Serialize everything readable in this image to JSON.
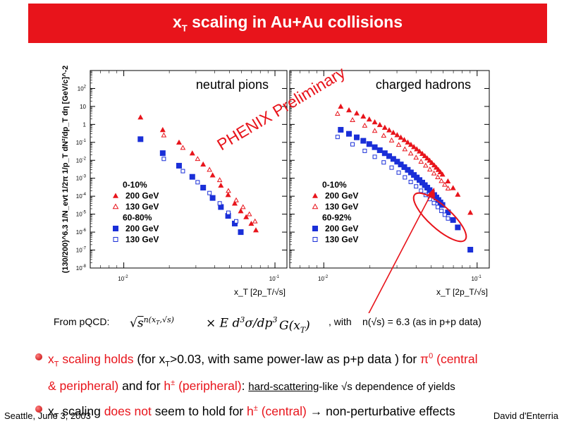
{
  "slide": {
    "title_main": "x",
    "title_sub": "T",
    "title_rest": " scaling in Au+Au collisions",
    "footer_left": "Seattle, June  3, 2003",
    "footer_right": "David d'Enterria"
  },
  "overlay": {
    "stamp": "PHENIX Preliminary",
    "colors": {
      "accent": "#e8141b",
      "series_filled": "#e8141b",
      "series_blue": "#1a2fd8"
    }
  },
  "chart_data": [
    {
      "type": "scatter",
      "title": "neutral pions",
      "ylabel": "(130/200)^6.3 1/N_evt 1/2π 1/p_T dN²/dp_T dη [GeV/c]^-2",
      "xlabel": "x_T [2p_T/√s]",
      "x_scale": "log",
      "y_scale": "log",
      "xlim": [
        0.006,
        0.12
      ],
      "ylim": [
        1e-08,
        1000
      ],
      "x_tick_labels": [
        "10-2",
        "10-1"
      ],
      "y_tick_labels": [
        "102",
        "10",
        "1",
        "10-1",
        "10-2",
        "10-3",
        "10-4",
        "10-5",
        "10-6",
        "10-7",
        "10-8"
      ],
      "legend": {
        "placement": "bottom-left",
        "entries": [
          "0-10%",
          "200 GeV",
          "130 GeV",
          "60-80%",
          "200 GeV",
          "130 GeV"
        ]
      },
      "series": [
        {
          "name": "0-10% 200 GeV",
          "marker": "filled-triangle",
          "color": "#e8141b",
          "x": [
            0.0129,
            0.0181,
            0.0232,
            0.0284,
            0.0335,
            0.0387,
            0.0439,
            0.049,
            0.0542,
            0.0594,
            0.0645,
            0.0697,
            0.0748
          ],
          "y": [
            2.5,
            0.5,
            0.1,
            0.025,
            0.006,
            0.0015,
            0.0004,
            0.00012,
            4e-05,
            1.5e-05,
            7e-06,
            3e-06,
            1.3e-06
          ]
        },
        {
          "name": "0-10% 130 GeV",
          "marker": "open-triangle",
          "color": "#e8141b",
          "x": [
            0.0184,
            0.0246,
            0.0308,
            0.0369,
            0.0431,
            0.0492,
            0.0554,
            0.0615,
            0.0677,
            0.0738
          ],
          "y": [
            0.25,
            0.05,
            0.012,
            0.003,
            0.0008,
            0.0002,
            6e-05,
            2.5e-05,
            1e-05,
            4e-06
          ]
        },
        {
          "name": "60-80% 200 GeV",
          "marker": "filled-square",
          "color": "#1a2fd8",
          "x": [
            0.0129,
            0.0181,
            0.0232,
            0.0284,
            0.0335,
            0.0387,
            0.0439,
            0.049,
            0.0542,
            0.0594
          ],
          "y": [
            0.15,
            0.025,
            0.005,
            0.0012,
            0.0003,
            8e-05,
            2.5e-05,
            8e-06,
            3e-06,
            1e-06
          ]
        },
        {
          "name": "60-80% 130 GeV",
          "marker": "open-square",
          "color": "#1a2fd8",
          "x": [
            0.0184,
            0.0246,
            0.0308,
            0.0369,
            0.0431,
            0.0492,
            0.0554
          ],
          "y": [
            0.012,
            0.0025,
            0.0006,
            0.00015,
            4e-05,
            1.2e-05,
            4e-06
          ]
        }
      ]
    },
    {
      "type": "scatter",
      "title": "charged hadrons",
      "xlabel": "x_T [2p_T/√s]",
      "x_scale": "log",
      "y_scale": "log",
      "xlim": [
        0.006,
        0.12
      ],
      "ylim": [
        1e-08,
        1000
      ],
      "x_tick_labels": [
        "10-2",
        "10-1"
      ],
      "legend": {
        "placement": "bottom-left",
        "entries": [
          "0-10%",
          "200 GeV",
          "130 GeV",
          "60-92%",
          "200 GeV",
          "130 GeV"
        ]
      },
      "series": [
        {
          "name": "0-10% 200 GeV",
          "marker": "filled-triangle",
          "color": "#e8141b",
          "x": [
            0.0129,
            0.0146,
            0.0164,
            0.0181,
            0.0198,
            0.0215,
            0.0232,
            0.025,
            0.0267,
            0.0284,
            0.0301,
            0.0318,
            0.0335,
            0.0353,
            0.037,
            0.0387,
            0.0404,
            0.0421,
            0.0439,
            0.0456,
            0.0473,
            0.049,
            0.0507,
            0.0525,
            0.0542,
            0.0559,
            0.0576,
            0.0594,
            0.0645,
            0.0697,
            0.0748,
            0.0903
          ],
          "y": [
            10.0,
            6.31,
            4.21,
            2.83,
            1.94,
            1.35,
            0.953,
            0.669,
            0.485,
            0.352,
            0.259,
            0.189,
            0.139,
            0.101,
            0.0758,
            0.0564,
            0.0425,
            0.0318,
            0.0236,
            0.0177,
            0.0132,
            0.00987,
            0.00734,
            0.00541,
            0.00403,
            0.00302,
            0.00223,
            0.00165,
            0.000689,
            0.000291,
            0.000126,
            1.24e-05
          ]
        },
        {
          "name": "0-10% 130 GeV",
          "marker": "open-triangle",
          "color": "#e8141b",
          "x": [
            0.0123,
            0.0154,
            0.0185,
            0.0215,
            0.0246,
            0.0277,
            0.0308,
            0.0338,
            0.0369,
            0.04,
            0.0431,
            0.0462,
            0.0492,
            0.0523,
            0.0554,
            0.0585,
            0.0615,
            0.0646
          ],
          "y": [
            4.0,
            1.77,
            0.864,
            0.443,
            0.237,
            0.13,
            0.0731,
            0.0417,
            0.0243,
            0.0143,
            0.00852,
            0.00513,
            0.00311,
            0.00189,
            0.00116,
            0.000713,
            0.000441,
            0.000273
          ]
        },
        {
          "name": "60-92% 200 GeV",
          "marker": "filled-square",
          "color": "#1a2fd8",
          "x": [
            0.0129,
            0.0146,
            0.0164,
            0.0181,
            0.0198,
            0.0215,
            0.0232,
            0.025,
            0.0267,
            0.0284,
            0.0301,
            0.0318,
            0.0335,
            0.0353,
            0.037,
            0.0387,
            0.0404,
            0.0421,
            0.0439,
            0.0456,
            0.0473,
            0.049,
            0.0507,
            0.0525,
            0.0542,
            0.0559,
            0.0576,
            0.0594,
            0.0645,
            0.0697,
            0.0748,
            0.0903
          ],
          "y": [
            0.5,
            0.299,
            0.19,
            0.122,
            0.0804,
            0.0538,
            0.0365,
            0.0248,
            0.0171,
            0.0119,
            0.00838,
            0.00587,
            0.00418,
            0.00294,
            0.00211,
            0.00152,
            0.0011,
            0.000794,
            0.000573,
            0.000414,
            0.000301,
            0.000218,
            0.000159,
            0.000116,
            8.44e-05,
            6.14e-05,
            4.48e-05,
            3.26e-05,
            1.25e-05,
            4.73e-06,
            1.83e-06,
            1.05e-07
          ]
        },
        {
          "name": "60-92% 130 GeV",
          "marker": "open-square",
          "color": "#1a2fd8",
          "x": [
            0.0123,
            0.0154,
            0.0185,
            0.0215,
            0.0246,
            0.0277,
            0.0308,
            0.0338,
            0.0369,
            0.04,
            0.0431,
            0.0462,
            0.0492,
            0.0523,
            0.0554,
            0.0585,
            0.0615,
            0.0646
          ],
          "y": [
            0.2,
            0.0775,
            0.0335,
            0.0156,
            0.00765,
            0.00391,
            0.00207,
            0.00112,
            0.000622,
            0.000352,
            0.000202,
            0.000118,
            6.95e-05,
            4.15e-05,
            2.5e-05,
            1.52e-05,
            9.29e-06,
            5.74e-06
          ]
        }
      ]
    }
  ],
  "text": {
    "from_pqcd": "From pQCD:",
    "with": ", with",
    "n_formula": "n(√s) = 6.3 (as in p+p data)",
    "b1_x": "x",
    "b1_T": "T",
    "b1_r1": " scaling holds",
    "b1_k1": " (for x",
    "b1_k1T": "T",
    "b1_k2": ">0.03, with same power-law as p+p data ) for ",
    "b1_pi": "π",
    "b1_pi0": "0",
    "b1_r2": " (central",
    "b1_r3": "& peripheral)",
    "b1_k3": " and for ",
    "b1_h": "h",
    "b1_hpm": "±",
    "b1_r4": " (peripheral)",
    "b1_k4": ": ",
    "b1_u": "hard-scattering",
    "b1_k5": "-like √s dependence of yields",
    "b2_x": "x",
    "b2_T": "T",
    "b2_k1": " scaling ",
    "b2_r1": "does not",
    "b2_k2": " seem to hold for ",
    "b2_h": "h",
    "b2_hpm": "±",
    "b2_r2": " (central)",
    "b2_k3": " → non-perturbative effects"
  }
}
